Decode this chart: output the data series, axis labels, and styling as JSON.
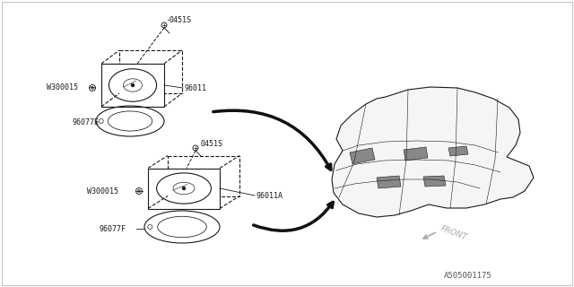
{
  "bg_color": "#ffffff",
  "part_number": "A505001175",
  "labels": {
    "top_screw": "0451S",
    "top_washer": "W300015",
    "top_panel": "96011",
    "top_gasket": "96077E",
    "bot_screw": "0451S",
    "bot_washer": "W300015",
    "bot_panel": "96011A",
    "bot_gasket": "96077F",
    "front": "FRONT"
  },
  "dc": "#1a1a1a",
  "lc": "#444444",
  "arrow_color": "#111111",
  "front_color": "#aaaaaa"
}
